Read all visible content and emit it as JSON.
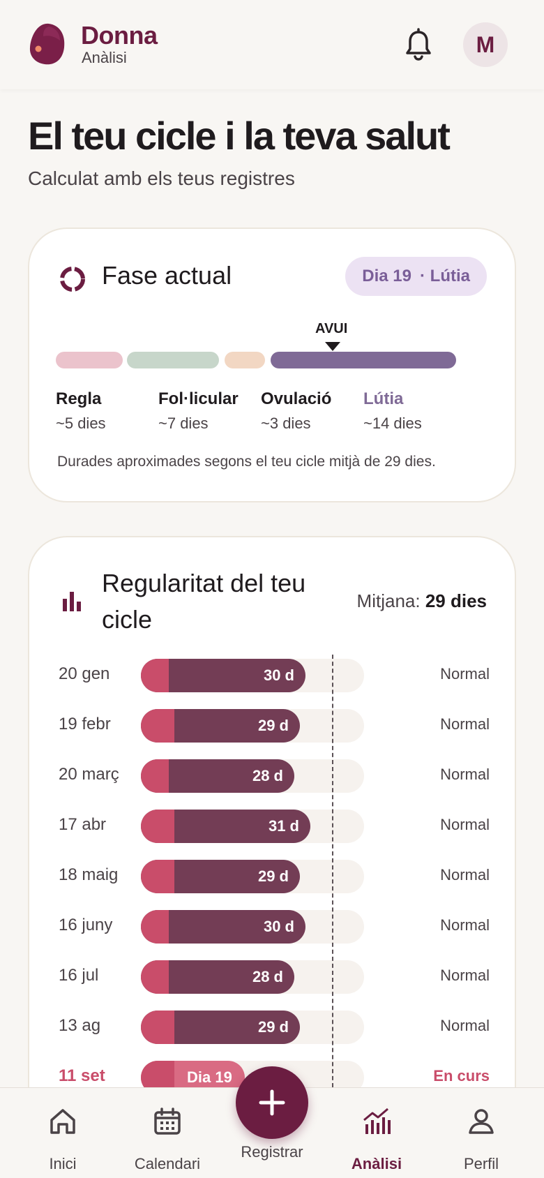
{
  "header": {
    "brand": "Donna",
    "section": "Anàlisi",
    "avatar_initial": "M"
  },
  "page": {
    "title": "El teu cicle i la teva salut",
    "subtitle": "Calculat amb els teus registres"
  },
  "phase_card": {
    "title": "Fase actual",
    "pill_day": "Dia 19",
    "pill_phase": "· Lútia",
    "today_label": "AVUI",
    "phases": [
      {
        "name": "Regla",
        "days": "~5 dies",
        "color": "#ebc3cc"
      },
      {
        "name": "Fol·licular",
        "days": "~7 dies",
        "color": "#c7d6ca"
      },
      {
        "name": "Ovulació",
        "days": "~3 dies",
        "color": "#f2d7c3"
      },
      {
        "name": "Lútia",
        "days": "~14 dies",
        "color": "#7f6a96"
      }
    ],
    "note": "Durades aproximades segons el teu cicle mitjà de 29 dies."
  },
  "regularity": {
    "title": "Regularitat del teu cicle",
    "avg_label": "Mitjana:",
    "avg_value": "29 dies",
    "rows": [
      {
        "date": "20 gen",
        "value": "30 d",
        "days": 30,
        "status": "Normal"
      },
      {
        "date": "19 febr",
        "value": "29 d",
        "days": 29,
        "status": "Normal"
      },
      {
        "date": "20 març",
        "value": "28 d",
        "days": 28,
        "status": "Normal"
      },
      {
        "date": "17 abr",
        "value": "31 d",
        "days": 31,
        "status": "Normal"
      },
      {
        "date": "18 maig",
        "value": "29 d",
        "days": 29,
        "status": "Normal"
      },
      {
        "date": "16 juny",
        "value": "30 d",
        "days": 30,
        "status": "Normal"
      },
      {
        "date": "16 jul",
        "value": "28 d",
        "days": 28,
        "status": "Normal"
      },
      {
        "date": "13 ag",
        "value": "29 d",
        "days": 29,
        "status": "Normal"
      },
      {
        "date": "11 set",
        "value": "Dia 19",
        "days": 19,
        "status": "En curs"
      }
    ]
  },
  "nav": {
    "items": [
      {
        "label": "Inici"
      },
      {
        "label": "Calendari"
      },
      {
        "label": "Registrar"
      },
      {
        "label": "Anàlisi"
      },
      {
        "label": "Perfil"
      }
    ]
  },
  "colors": {
    "brand": "#6b1d41",
    "accent_period": "#c94d6a",
    "cycle_fill": "#733d55",
    "luteal": "#7f6a96"
  }
}
